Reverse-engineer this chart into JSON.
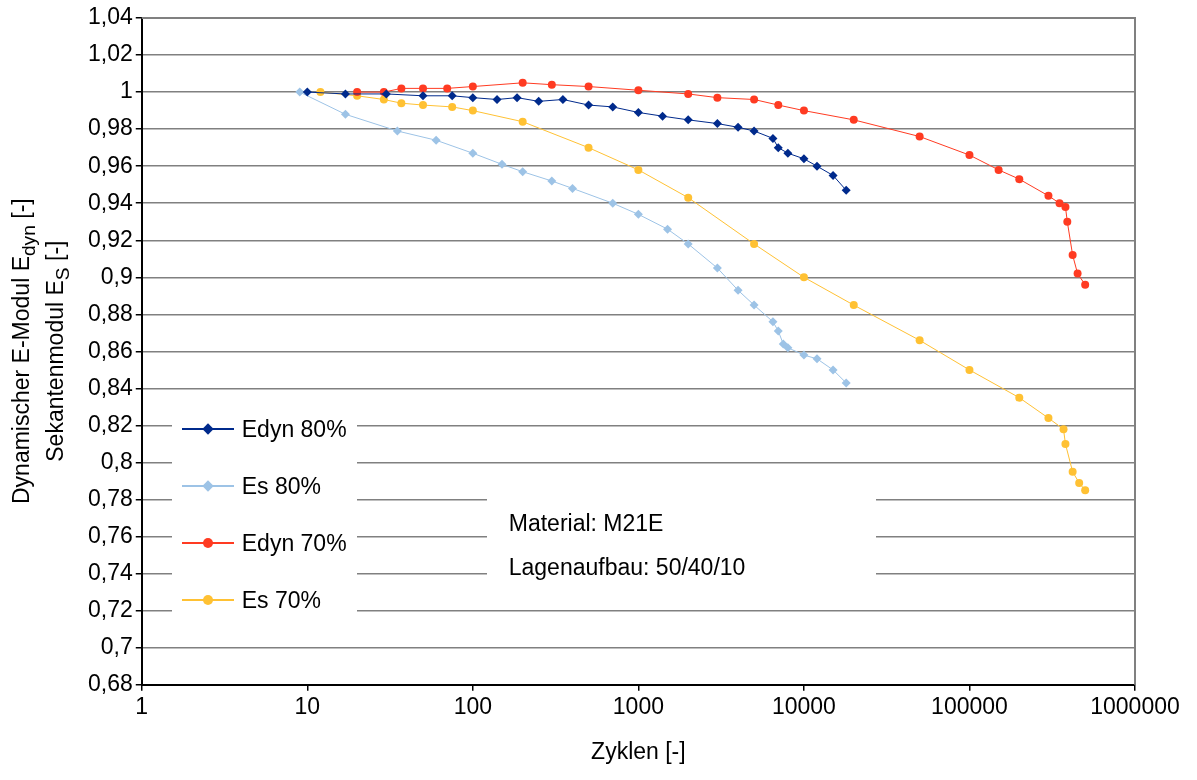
{
  "chart_data": {
    "type": "line",
    "xlabel": "Zyklen [-]",
    "ylabel": "Dynamischer E-Modul  E$_{dyn}$ [-]\nSekantenmodul E$_{S}$ [-]",
    "log": "x",
    "xlim": [
      1,
      1000000
    ],
    "xticks": [
      1,
      10,
      100,
      1000,
      10000,
      100000,
      1000000
    ],
    "ylim": [
      0.68,
      1.04
    ],
    "yticks": [
      {
        "value": 0.68,
        "label": "0,68"
      },
      {
        "value": 0.7,
        "label": "0,7"
      },
      {
        "value": 0.72,
        "label": "0,72"
      },
      {
        "value": 0.74,
        "label": "0,74"
      },
      {
        "value": 0.76,
        "label": "0,76"
      },
      {
        "value": 0.78,
        "label": "0,78"
      },
      {
        "value": 0.8,
        "label": "0,8"
      },
      {
        "value": 0.82,
        "label": "0,82"
      },
      {
        "value": 0.84,
        "label": "0,84"
      },
      {
        "value": 0.86,
        "label": "0,86"
      },
      {
        "value": 0.88,
        "label": "0,88"
      },
      {
        "value": 0.9,
        "label": "0,9"
      },
      {
        "value": 0.92,
        "label": "0,92"
      },
      {
        "value": 0.94,
        "label": "0,94"
      },
      {
        "value": 0.96,
        "label": "0,96"
      },
      {
        "value": 0.98,
        "label": "0,98"
      },
      {
        "value": 1,
        "label": "1"
      },
      {
        "value": 1.02,
        "label": "1,02"
      },
      {
        "value": 1.04,
        "label": "1,04"
      }
    ],
    "grid": "y",
    "legend": "bottom left",
    "annotations": [
      "Material: M21E",
      "Lagenaufbau: 50/40/10"
    ],
    "series": [
      {
        "name": "Edyn 80%",
        "color": "#002a8c",
        "marker": "diamond",
        "x": [
          10,
          17,
          30,
          50,
          75,
          100,
          140,
          185,
          250,
          350,
          500,
          700,
          1000,
          1400,
          2000,
          3000,
          4000,
          5000,
          6500,
          7000,
          8000,
          10000,
          12000,
          15000,
          18000
        ],
        "values": [
          1,
          0.999,
          0.999,
          0.998,
          0.998,
          0.997,
          0.996,
          0.997,
          0.995,
          0.996,
          0.993,
          0.992,
          0.989,
          0.987,
          0.985,
          0.983,
          0.981,
          0.979,
          0.975,
          0.97,
          0.967,
          0.964,
          0.96,
          0.955,
          0.947
        ]
      },
      {
        "name": "Es 80%",
        "color": "#9dc3e6",
        "marker": "diamond",
        "x": [
          9,
          17,
          35,
          60,
          100,
          150,
          200,
          300,
          400,
          700,
          1000,
          1500,
          2000,
          3000,
          4000,
          5000,
          6500,
          7000,
          7500,
          8000,
          10000,
          12000,
          15000,
          18000
        ],
        "values": [
          1,
          0.988,
          0.979,
          0.974,
          0.967,
          0.961,
          0.957,
          0.952,
          0.948,
          0.94,
          0.934,
          0.926,
          0.918,
          0.905,
          0.893,
          0.885,
          0.876,
          0.871,
          0.864,
          0.862,
          0.858,
          0.856,
          0.85,
          0.843
        ]
      },
      {
        "name": "Edyn 70%",
        "color": "#ff3b22",
        "marker": "circle",
        "x": [
          20,
          29,
          37,
          50,
          70,
          100,
          200,
          300,
          500,
          1000,
          2000,
          3000,
          5000,
          7000,
          10000,
          20000,
          50000,
          100000,
          150000,
          200000,
          300000,
          350000,
          380000,
          390000,
          420000,
          450000,
          500000
        ],
        "values": [
          1,
          1,
          1.002,
          1.002,
          1.002,
          1.003,
          1.005,
          1.004,
          1.003,
          1.001,
          0.999,
          0.997,
          0.996,
          0.993,
          0.99,
          0.985,
          0.976,
          0.966,
          0.958,
          0.953,
          0.944,
          0.94,
          0.938,
          0.93,
          0.912,
          0.902,
          0.896
        ]
      },
      {
        "name": "Es 70%",
        "color": "#ffc133",
        "marker": "circle",
        "x": [
          12,
          20,
          29,
          37,
          50,
          75,
          100,
          200,
          500,
          1000,
          2000,
          5000,
          10000,
          20000,
          50000,
          100000,
          200000,
          300000,
          370000,
          380000,
          420000,
          460000,
          500000
        ],
        "values": [
          1,
          0.998,
          0.996,
          0.994,
          0.993,
          0.992,
          0.99,
          0.984,
          0.97,
          0.958,
          0.943,
          0.918,
          0.9,
          0.885,
          0.866,
          0.85,
          0.835,
          0.824,
          0.818,
          0.81,
          0.795,
          0.789,
          0.785
        ]
      }
    ]
  }
}
